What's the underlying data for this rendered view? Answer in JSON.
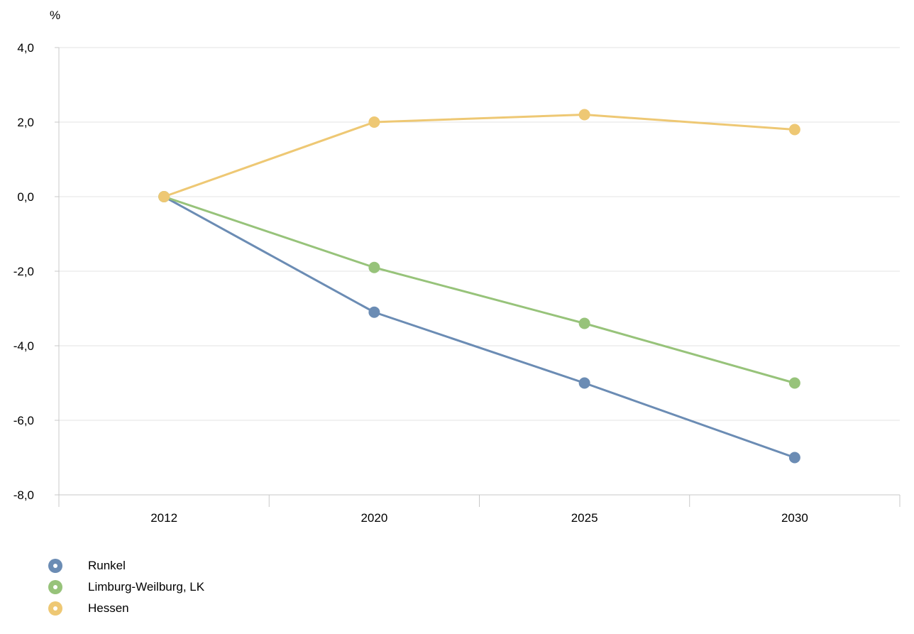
{
  "chart_data": {
    "type": "line",
    "unit_label": "%",
    "x": [
      "2012",
      "2020",
      "2025",
      "2030"
    ],
    "ylim": [
      -8,
      4
    ],
    "y_ticks": [
      4,
      2,
      0,
      -2,
      -4,
      -6,
      -8
    ],
    "y_tick_labels": [
      "4,0",
      "2,0",
      "0,0",
      "-2,0",
      "-4,0",
      "-6,0",
      "-8,0"
    ],
    "grid": true,
    "legend_position": "bottom-left",
    "series": [
      {
        "name": "Runkel",
        "color": "#6b8cb4",
        "values": [
          0,
          -3.1,
          -5.0,
          -7.0
        ]
      },
      {
        "name": "Limburg-Weilburg, LK",
        "color": "#97c37a",
        "values": [
          0,
          -1.9,
          -3.4,
          -5.0
        ]
      },
      {
        "name": "Hessen",
        "color": "#eec874",
        "values": [
          0,
          2.0,
          2.2,
          1.8
        ]
      }
    ]
  }
}
